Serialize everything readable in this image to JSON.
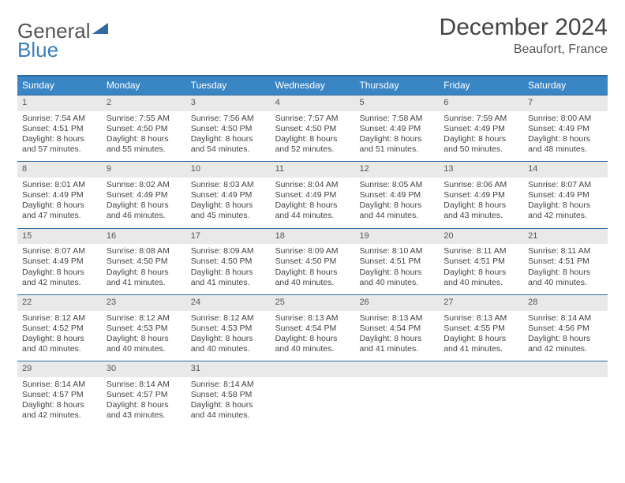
{
  "logo": {
    "a": "General",
    "b": "Blue"
  },
  "title": "December 2024",
  "location": "Beaufort, France",
  "colors": {
    "header_bg": "#3a86c5",
    "header_text": "#ffffff",
    "daynum_bg": "#e9e9e9",
    "border": "#2f6aa0",
    "text": "#444444"
  },
  "weekdays": [
    "Sunday",
    "Monday",
    "Tuesday",
    "Wednesday",
    "Thursday",
    "Friday",
    "Saturday"
  ],
  "days": [
    {
      "n": "1",
      "sr": "Sunrise: 7:54 AM",
      "ss": "Sunset: 4:51 PM",
      "d1": "Daylight: 8 hours",
      "d2": "and 57 minutes."
    },
    {
      "n": "2",
      "sr": "Sunrise: 7:55 AM",
      "ss": "Sunset: 4:50 PM",
      "d1": "Daylight: 8 hours",
      "d2": "and 55 minutes."
    },
    {
      "n": "3",
      "sr": "Sunrise: 7:56 AM",
      "ss": "Sunset: 4:50 PM",
      "d1": "Daylight: 8 hours",
      "d2": "and 54 minutes."
    },
    {
      "n": "4",
      "sr": "Sunrise: 7:57 AM",
      "ss": "Sunset: 4:50 PM",
      "d1": "Daylight: 8 hours",
      "d2": "and 52 minutes."
    },
    {
      "n": "5",
      "sr": "Sunrise: 7:58 AM",
      "ss": "Sunset: 4:49 PM",
      "d1": "Daylight: 8 hours",
      "d2": "and 51 minutes."
    },
    {
      "n": "6",
      "sr": "Sunrise: 7:59 AM",
      "ss": "Sunset: 4:49 PM",
      "d1": "Daylight: 8 hours",
      "d2": "and 50 minutes."
    },
    {
      "n": "7",
      "sr": "Sunrise: 8:00 AM",
      "ss": "Sunset: 4:49 PM",
      "d1": "Daylight: 8 hours",
      "d2": "and 48 minutes."
    },
    {
      "n": "8",
      "sr": "Sunrise: 8:01 AM",
      "ss": "Sunset: 4:49 PM",
      "d1": "Daylight: 8 hours",
      "d2": "and 47 minutes."
    },
    {
      "n": "9",
      "sr": "Sunrise: 8:02 AM",
      "ss": "Sunset: 4:49 PM",
      "d1": "Daylight: 8 hours",
      "d2": "and 46 minutes."
    },
    {
      "n": "10",
      "sr": "Sunrise: 8:03 AM",
      "ss": "Sunset: 4:49 PM",
      "d1": "Daylight: 8 hours",
      "d2": "and 45 minutes."
    },
    {
      "n": "11",
      "sr": "Sunrise: 8:04 AM",
      "ss": "Sunset: 4:49 PM",
      "d1": "Daylight: 8 hours",
      "d2": "and 44 minutes."
    },
    {
      "n": "12",
      "sr": "Sunrise: 8:05 AM",
      "ss": "Sunset: 4:49 PM",
      "d1": "Daylight: 8 hours",
      "d2": "and 44 minutes."
    },
    {
      "n": "13",
      "sr": "Sunrise: 8:06 AM",
      "ss": "Sunset: 4:49 PM",
      "d1": "Daylight: 8 hours",
      "d2": "and 43 minutes."
    },
    {
      "n": "14",
      "sr": "Sunrise: 8:07 AM",
      "ss": "Sunset: 4:49 PM",
      "d1": "Daylight: 8 hours",
      "d2": "and 42 minutes."
    },
    {
      "n": "15",
      "sr": "Sunrise: 8:07 AM",
      "ss": "Sunset: 4:49 PM",
      "d1": "Daylight: 8 hours",
      "d2": "and 42 minutes."
    },
    {
      "n": "16",
      "sr": "Sunrise: 8:08 AM",
      "ss": "Sunset: 4:50 PM",
      "d1": "Daylight: 8 hours",
      "d2": "and 41 minutes."
    },
    {
      "n": "17",
      "sr": "Sunrise: 8:09 AM",
      "ss": "Sunset: 4:50 PM",
      "d1": "Daylight: 8 hours",
      "d2": "and 41 minutes."
    },
    {
      "n": "18",
      "sr": "Sunrise: 8:09 AM",
      "ss": "Sunset: 4:50 PM",
      "d1": "Daylight: 8 hours",
      "d2": "and 40 minutes."
    },
    {
      "n": "19",
      "sr": "Sunrise: 8:10 AM",
      "ss": "Sunset: 4:51 PM",
      "d1": "Daylight: 8 hours",
      "d2": "and 40 minutes."
    },
    {
      "n": "20",
      "sr": "Sunrise: 8:11 AM",
      "ss": "Sunset: 4:51 PM",
      "d1": "Daylight: 8 hours",
      "d2": "and 40 minutes."
    },
    {
      "n": "21",
      "sr": "Sunrise: 8:11 AM",
      "ss": "Sunset: 4:51 PM",
      "d1": "Daylight: 8 hours",
      "d2": "and 40 minutes."
    },
    {
      "n": "22",
      "sr": "Sunrise: 8:12 AM",
      "ss": "Sunset: 4:52 PM",
      "d1": "Daylight: 8 hours",
      "d2": "and 40 minutes."
    },
    {
      "n": "23",
      "sr": "Sunrise: 8:12 AM",
      "ss": "Sunset: 4:53 PM",
      "d1": "Daylight: 8 hours",
      "d2": "and 40 minutes."
    },
    {
      "n": "24",
      "sr": "Sunrise: 8:12 AM",
      "ss": "Sunset: 4:53 PM",
      "d1": "Daylight: 8 hours",
      "d2": "and 40 minutes."
    },
    {
      "n": "25",
      "sr": "Sunrise: 8:13 AM",
      "ss": "Sunset: 4:54 PM",
      "d1": "Daylight: 8 hours",
      "d2": "and 40 minutes."
    },
    {
      "n": "26",
      "sr": "Sunrise: 8:13 AM",
      "ss": "Sunset: 4:54 PM",
      "d1": "Daylight: 8 hours",
      "d2": "and 41 minutes."
    },
    {
      "n": "27",
      "sr": "Sunrise: 8:13 AM",
      "ss": "Sunset: 4:55 PM",
      "d1": "Daylight: 8 hours",
      "d2": "and 41 minutes."
    },
    {
      "n": "28",
      "sr": "Sunrise: 8:14 AM",
      "ss": "Sunset: 4:56 PM",
      "d1": "Daylight: 8 hours",
      "d2": "and 42 minutes."
    },
    {
      "n": "29",
      "sr": "Sunrise: 8:14 AM",
      "ss": "Sunset: 4:57 PM",
      "d1": "Daylight: 8 hours",
      "d2": "and 42 minutes."
    },
    {
      "n": "30",
      "sr": "Sunrise: 8:14 AM",
      "ss": "Sunset: 4:57 PM",
      "d1": "Daylight: 8 hours",
      "d2": "and 43 minutes."
    },
    {
      "n": "31",
      "sr": "Sunrise: 8:14 AM",
      "ss": "Sunset: 4:58 PM",
      "d1": "Daylight: 8 hours",
      "d2": "and 44 minutes."
    }
  ]
}
